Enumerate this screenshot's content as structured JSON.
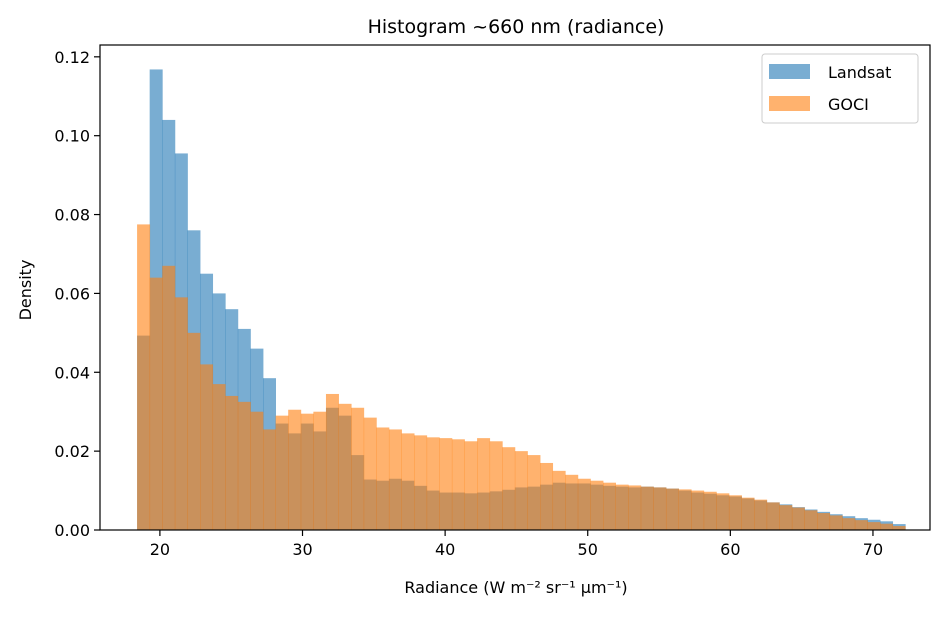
{
  "chart_data": {
    "type": "histogram",
    "title": "Histogram ~660 nm (radiance)",
    "xlabel": "Radiance (W m⁻² sr⁻¹ μm⁻¹)",
    "ylabel": "Density",
    "xlim": [
      15.8,
      74.0
    ],
    "ylim": [
      0.0,
      0.123
    ],
    "xticks": [
      20,
      30,
      40,
      50,
      60,
      70
    ],
    "yticks": [
      0.0,
      0.02,
      0.04,
      0.06,
      0.08,
      0.1,
      0.12
    ],
    "ytick_labels": [
      "0.00",
      "0.02",
      "0.04",
      "0.06",
      "0.08",
      "0.10",
      "0.12"
    ],
    "grid": false,
    "legend_position": "top-right",
    "bin_start": 18.4,
    "bin_width": 0.883,
    "series": [
      {
        "name": "Landsat",
        "color": "#1f77b4",
        "alpha": 0.6,
        "values": [
          0.0493,
          0.1168,
          0.104,
          0.0955,
          0.076,
          0.065,
          0.06,
          0.056,
          0.051,
          0.046,
          0.0385,
          0.027,
          0.0245,
          0.027,
          0.025,
          0.031,
          0.029,
          0.019,
          0.0128,
          0.0125,
          0.013,
          0.0125,
          0.0112,
          0.01,
          0.0095,
          0.0095,
          0.0093,
          0.0095,
          0.0098,
          0.0102,
          0.0108,
          0.011,
          0.0115,
          0.012,
          0.0118,
          0.0118,
          0.0115,
          0.0112,
          0.011,
          0.0108,
          0.011,
          0.0108,
          0.0105,
          0.01,
          0.0095,
          0.0092,
          0.0088,
          0.0085,
          0.008,
          0.0075,
          0.007,
          0.0065,
          0.0058,
          0.0052,
          0.0046,
          0.004,
          0.0035,
          0.003,
          0.0026,
          0.0022,
          0.0015
        ]
      },
      {
        "name": "GOCI",
        "color": "#ff7f0e",
        "alpha": 0.6,
        "values": [
          0.0775,
          0.064,
          0.067,
          0.059,
          0.05,
          0.042,
          0.037,
          0.034,
          0.0325,
          0.03,
          0.0255,
          0.029,
          0.0305,
          0.0295,
          0.03,
          0.0345,
          0.032,
          0.031,
          0.0285,
          0.026,
          0.0255,
          0.0245,
          0.024,
          0.0235,
          0.0233,
          0.023,
          0.0225,
          0.0233,
          0.0225,
          0.021,
          0.02,
          0.019,
          0.017,
          0.015,
          0.014,
          0.013,
          0.0125,
          0.012,
          0.0115,
          0.0113,
          0.011,
          0.0108,
          0.0105,
          0.0103,
          0.01,
          0.0097,
          0.0093,
          0.0088,
          0.0082,
          0.0077,
          0.007,
          0.0063,
          0.0057,
          0.005,
          0.0043,
          0.0037,
          0.003,
          0.0025,
          0.002,
          0.0016,
          0.001
        ]
      }
    ]
  }
}
